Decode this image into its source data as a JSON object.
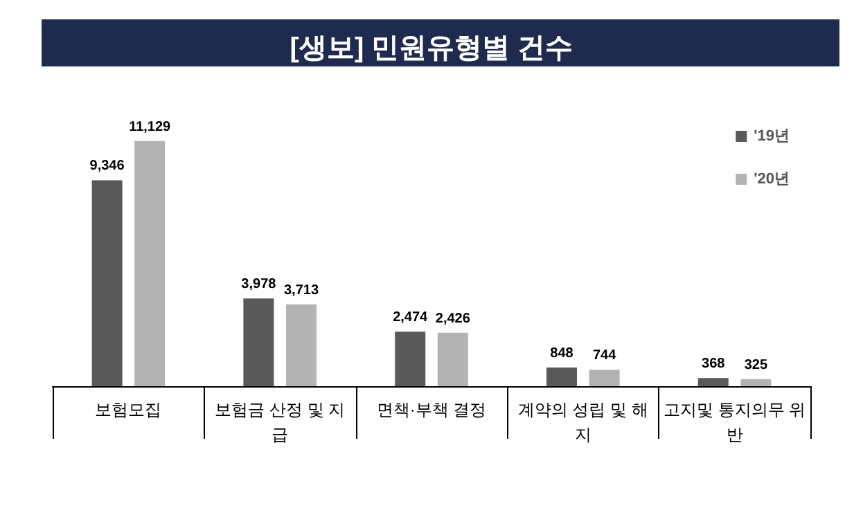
{
  "chart_data": {
    "type": "bar",
    "title": "[생보] 민원유형별 건수",
    "categories": [
      "보험모집",
      "보험금 산정 및 지급",
      "면책·부책 결정",
      "계약의 성립 및 해지",
      "고지및 통지의무 위반"
    ],
    "series": [
      {
        "name": "'19년",
        "color": "#595959",
        "values": [
          9346,
          3978,
          2474,
          848,
          368
        ],
        "value_labels": [
          "9,346",
          "3,978",
          "2,474",
          "848",
          "368"
        ]
      },
      {
        "name": "'20년",
        "color": "#b3b3b3",
        "values": [
          11129,
          3713,
          2426,
          744,
          325
        ],
        "value_labels": [
          "11,129",
          "3,713",
          "2,426",
          "744",
          "325"
        ]
      }
    ],
    "legend": "top right",
    "grid": false
  }
}
